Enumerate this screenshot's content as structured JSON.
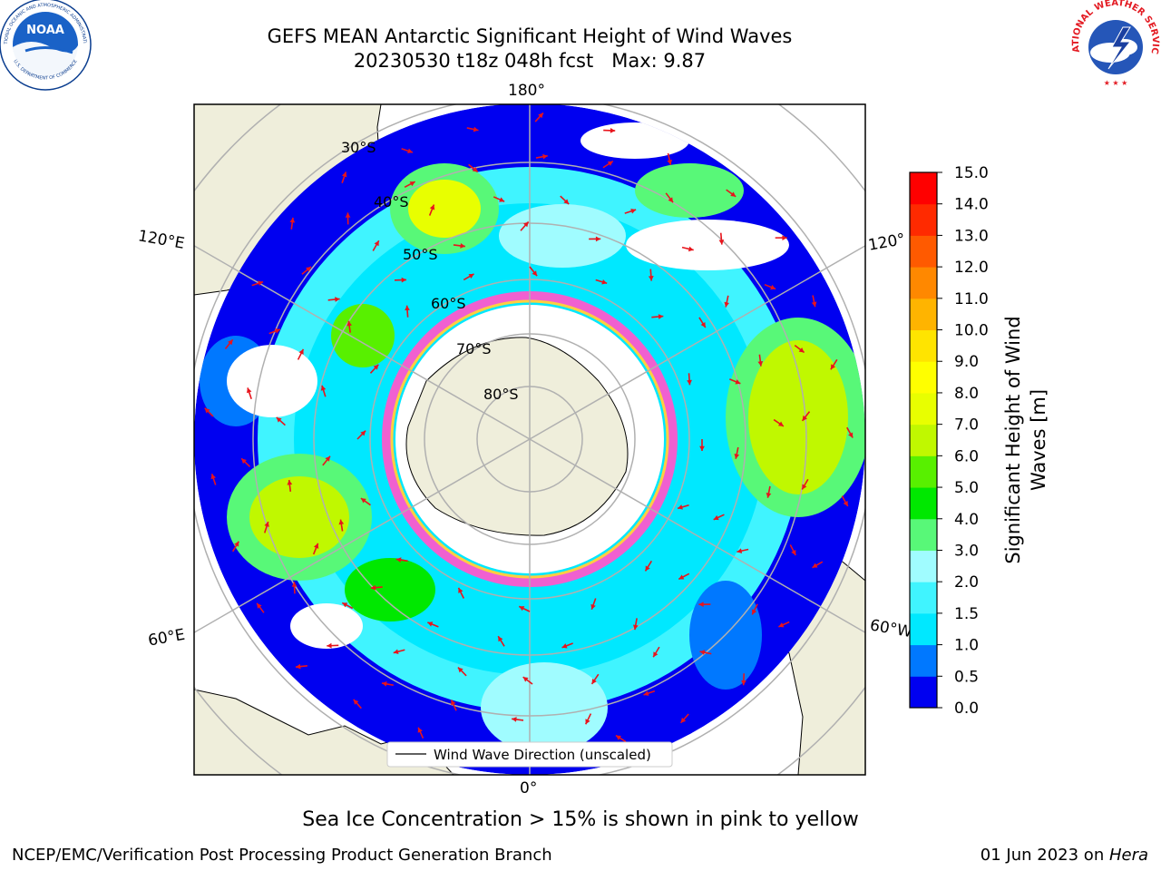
{
  "title_line1": "GEFS MEAN Antarctic Significant Height of Wind Waves",
  "title_line2": "20230530 t18z 048h fcst   Max: 9.87",
  "logos": {
    "noaa": {
      "text": "NOAA",
      "arc_text": "NATIONAL OCEANIC AND ATMOSPHERIC ADMINISTRATION",
      "bottom_text": "U.S. DEPARTMENT OF COMMERCE",
      "color": "#0a3d8f"
    },
    "nws": {
      "arc_text": "NATIONAL WEATHER SERVICE",
      "color": "#e31b23"
    }
  },
  "map": {
    "projection": "south polar stereographic",
    "longitude_labels": [
      "180°",
      "120°E",
      "120°",
      "60°E",
      "60°W",
      "0°"
    ],
    "latitude_labels": [
      "30°S",
      "40°S",
      "50°S",
      "60°S",
      "70°S",
      "80°S"
    ],
    "legend": "Wind Wave Direction (unscaled)",
    "colors": {
      "land": "#efeedb",
      "ocean_no_data": "#ffffff",
      "arrow": "#e8141c",
      "grid": "#b0b0b0",
      "ice_edge": "#f060d0"
    }
  },
  "colorbar": {
    "label_line1": "Significant Height of Wind",
    "label_line2": "Waves [m]",
    "ticks": [
      "0.0",
      "0.5",
      "1.0",
      "1.5",
      "2.0",
      "3.0",
      "4.0",
      "5.0",
      "6.0",
      "7.0",
      "8.0",
      "9.0",
      "10.0",
      "11.0",
      "12.0",
      "13.0",
      "14.0",
      "15.0"
    ],
    "colors": [
      "#0000f0",
      "#0078ff",
      "#00e8ff",
      "#40f4ff",
      "#a0fcff",
      "#58f878",
      "#00e800",
      "#58f000",
      "#c0f800",
      "#e8ff00",
      "#ffff00",
      "#ffe400",
      "#ffb400",
      "#ff8800",
      "#ff5a00",
      "#ff2a00",
      "#ff0000"
    ]
  },
  "note": "Sea Ice Concentration > 15% is shown in pink to yellow",
  "footer_left": "NCEP/EMC/Verification Post Processing Product Generation Branch",
  "footer_right_date": "01 Jun 2023 on ",
  "footer_right_host": "Hera"
}
